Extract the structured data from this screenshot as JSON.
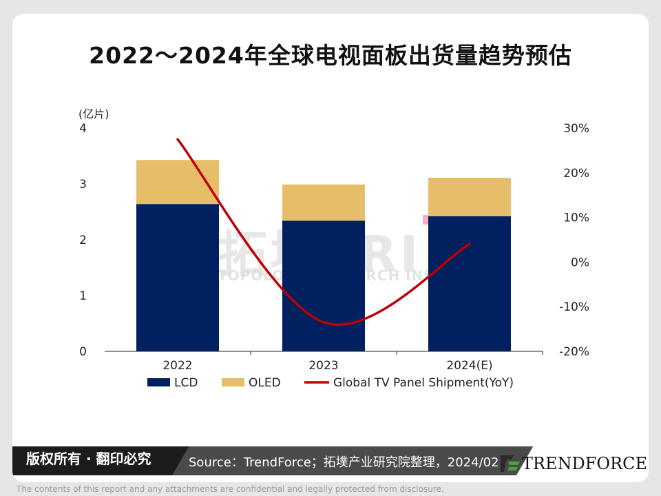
{
  "page": {
    "copyright": "版权所有 · 翻印必究",
    "source": "Source：TrendForce；拓墣产业研究院整理，2024/02",
    "logo_text": "TRENDFORCE",
    "disclaimer": "The contents of this report and any attachments are confidential and legally protected from disclosure.",
    "watermark_main": "拓墣TRI",
    "watermark_sub": "TOPOLOGY RESEARCH INSTITUTE"
  },
  "chart_data": {
    "type": "bar",
    "stacked": true,
    "title": "2022～2024年全球电视面板出货量趋势预估",
    "ylabel": "(亿片)",
    "categories": [
      "2022",
      "2023",
      "2024(E)"
    ],
    "ylim": [
      0,
      4
    ],
    "y_ticks": [
      "0",
      "1",
      "2",
      "3",
      "4"
    ],
    "y2lim": [
      -20,
      30
    ],
    "y2_ticks": [
      "-20%",
      "-10%",
      "0%",
      "10%",
      "20%",
      "30%"
    ],
    "series": [
      {
        "name": "LCD",
        "type": "bar",
        "axis": "left",
        "color": "#002060",
        "values": [
          2.64,
          2.34,
          2.42
        ]
      },
      {
        "name": "OLED",
        "type": "bar",
        "axis": "left",
        "color": "#E6BE6A",
        "values": [
          0.79,
          0.65,
          0.69
        ]
      },
      {
        "name": "Global TV Panel Shipment(YoY)",
        "type": "line",
        "axis": "right",
        "color": "#C00000",
        "values": [
          27.5,
          -13.5,
          4
        ]
      }
    ],
    "legend": "bottom",
    "grid": false
  }
}
